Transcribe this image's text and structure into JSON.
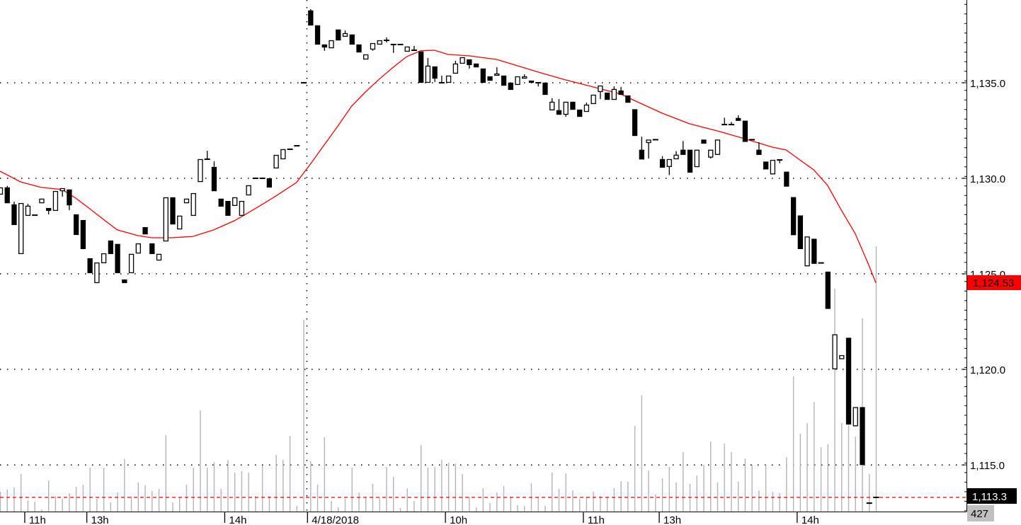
{
  "chart_data": {
    "type": "candlestick",
    "title": "",
    "ylim": [
      1112.56,
      1139.33
    ],
    "grid": true,
    "colors": {
      "up_body": "#ffffff",
      "down_body": "#000000",
      "outline": "#000000",
      "ma_line": "#ff0000",
      "volume": "#b4b4b4",
      "last_price_line": "#ff0000",
      "ma_badge": "#ff0000",
      "last_badge": "#000000",
      "volume_badge": "#c0c0c0"
    },
    "y_ticks": [
      {
        "value": 1135,
        "label": "1,135.0"
      },
      {
        "value": 1130,
        "label": "1,130.0"
      },
      {
        "value": 1125,
        "label": "1,125.0"
      },
      {
        "value": 1120,
        "label": "1,120.0"
      },
      {
        "value": 1115,
        "label": "1,115.0"
      }
    ],
    "x_ticks": [
      {
        "index": 4,
        "label": "11h"
      },
      {
        "index": 13,
        "label": "13h"
      },
      {
        "index": 33,
        "label": "14h"
      },
      {
        "index": 45,
        "label": "4/18/2018"
      },
      {
        "index": 65,
        "label": "10h"
      },
      {
        "index": 85,
        "label": "11h"
      },
      {
        "index": 96,
        "label": "13h"
      },
      {
        "index": 116,
        "label": "14h"
      }
    ],
    "session_break_index": 44.5,
    "ohlc": [
      [
        1129.15,
        1129.52,
        1129.15,
        1129.52
      ],
      [
        1129.52,
        1129.6,
        1128.7,
        1128.7
      ],
      [
        1128.63,
        1128.78,
        1127.56,
        1127.56
      ],
      [
        1126.04,
        1128.7,
        1126.04,
        1128.7
      ],
      [
        1128.04,
        1128.67,
        1128.04,
        1128.56
      ],
      [
        1128.07,
        1128.07,
        1128.07,
        1128.07
      ],
      [
        1128.7,
        1128.93,
        1128.7,
        1128.93
      ],
      [
        1128.44,
        1128.44,
        1128.11,
        1128.3
      ],
      [
        1128.3,
        1129.33,
        1128.3,
        1129.33
      ],
      [
        1129.33,
        1129.48,
        1129.04,
        1129.48
      ],
      [
        1129.41,
        1129.41,
        1128.33,
        1128.59
      ],
      [
        1128.11,
        1128.11,
        1127.04,
        1127.04
      ],
      [
        1127.81,
        1127.81,
        1126.3,
        1126.3
      ],
      [
        1125.81,
        1125.81,
        1125.04,
        1125.04
      ],
      [
        1124.52,
        1125.59,
        1124.52,
        1125.59
      ],
      [
        1125.56,
        1126.07,
        1125.56,
        1126.07
      ],
      [
        1126.74,
        1126.74,
        1126.04,
        1126.04
      ],
      [
        1126.56,
        1126.56,
        1125.04,
        1125.04
      ],
      [
        1124.7,
        1124.7,
        1124.52,
        1124.52
      ],
      [
        1125.04,
        1126.04,
        1125.04,
        1126.04
      ],
      [
        1126.07,
        1126.59,
        1126.07,
        1126.59
      ],
      [
        1127.44,
        1127.44,
        1127.07,
        1127.07
      ],
      [
        1126.59,
        1126.59,
        1126.04,
        1126.04
      ],
      [
        1125.7,
        1126.04,
        1125.7,
        1126.04
      ],
      [
        1126.7,
        1129.0,
        1126.7,
        1129.0
      ],
      [
        1129.0,
        1129.0,
        1127.59,
        1127.59
      ],
      [
        1127.33,
        1128.04,
        1127.33,
        1128.04
      ],
      [
        1128.7,
        1128.93,
        1128.7,
        1128.93
      ],
      [
        1128.04,
        1129.22,
        1128.04,
        1129.22
      ],
      [
        1129.81,
        1131.0,
        1129.81,
        1131.0
      ],
      [
        1131.0,
        1131.44,
        1131.0,
        1131.0
      ],
      [
        1130.59,
        1130.89,
        1129.33,
        1129.33
      ],
      [
        1128.93,
        1128.93,
        1128.52,
        1128.52
      ],
      [
        1128.81,
        1128.81,
        1128.04,
        1128.04
      ],
      [
        1128.56,
        1129.0,
        1128.56,
        1129.0
      ],
      [
        1128.04,
        1128.81,
        1128.04,
        1128.81
      ],
      [
        1129.11,
        1129.63,
        1129.11,
        1129.63
      ],
      [
        1130,
        1130,
        1130,
        1130
      ],
      [
        1130,
        1130,
        1130,
        1130
      ],
      [
        1130,
        1130,
        1129.52,
        1129.52
      ],
      [
        1130.52,
        1131.22,
        1130.52,
        1131.22
      ],
      [
        1131.0,
        1131.52,
        1131.0,
        1131.52
      ],
      [
        1131.52,
        1131.52,
        1131.52,
        1131.52
      ],
      [
        1131.7,
        1131.7,
        1131.7,
        1131.7
      ],
      [
        1135,
        1135,
        1135,
        1135
      ],
      [
        1138.78,
        1138.85,
        1138.0,
        1138.0
      ],
      [
        1138.0,
        1138.0,
        1137.0,
        1137.0
      ],
      [
        1137.0,
        1137.0,
        1136.67,
        1136.85
      ],
      [
        1136.81,
        1137.22,
        1136.81,
        1137.22
      ],
      [
        1137.78,
        1137.78,
        1137.22,
        1137.22
      ],
      [
        1137.41,
        1137.74,
        1137.41,
        1137.59
      ],
      [
        1137.52,
        1137.52,
        1137.0,
        1137.0
      ],
      [
        1137.0,
        1137.0,
        1136.59,
        1136.59
      ],
      [
        1136.22,
        1136.48,
        1136.22,
        1136.48
      ],
      [
        1136.74,
        1137.07,
        1136.67,
        1137.07
      ],
      [
        1137.0,
        1137.22,
        1137.0,
        1137.22
      ],
      [
        1137.22,
        1137.37,
        1137.11,
        1137.22
      ],
      [
        1137.0,
        1137.0,
        1136.56,
        1137.0
      ],
      [
        1137,
        1137,
        1137,
        1137
      ],
      [
        1136.63,
        1136.89,
        1136.63,
        1136.89
      ],
      [
        1136.7,
        1136.93,
        1136.7,
        1136.7
      ],
      [
        1136.63,
        1136.63,
        1135.0,
        1135.0
      ],
      [
        1135.0,
        1136.3,
        1135.0,
        1135.89
      ],
      [
        1135.85,
        1135.85,
        1135.04,
        1135.22
      ],
      [
        1135.0,
        1135.37,
        1135.0,
        1135.0
      ],
      [
        1135.0,
        1135.37,
        1135.0,
        1135.37
      ],
      [
        1135.48,
        1136.15,
        1135.48,
        1136.0
      ],
      [
        1136.0,
        1136.33,
        1136.0,
        1136.33
      ],
      [
        1136.22,
        1136.22,
        1135.74,
        1135.93
      ],
      [
        1136.0,
        1136.0,
        1135.81,
        1135.81
      ],
      [
        1135.74,
        1135.74,
        1135.0,
        1135.0
      ],
      [
        1135.33,
        1135.33,
        1135.11,
        1135.11
      ],
      [
        1135.37,
        1135.81,
        1135.37,
        1135.48
      ],
      [
        1135.37,
        1135.37,
        1134.85,
        1134.85
      ],
      [
        1135.0,
        1135.0,
        1134.63,
        1134.63
      ],
      [
        1134.89,
        1135.33,
        1134.89,
        1135.33
      ],
      [
        1135.22,
        1135.44,
        1135.22,
        1135.33
      ],
      [
        1135.11,
        1135.11,
        1135.0,
        1135.0
      ],
      [
        1135.0,
        1135.0,
        1134.81,
        1135.0
      ],
      [
        1135.0,
        1135.0,
        1134.37,
        1134.37
      ],
      [
        1133.56,
        1134.19,
        1133.56,
        1134.0
      ],
      [
        1133.56,
        1134.15,
        1133.33,
        1133.33
      ],
      [
        1133.33,
        1134.0,
        1133.22,
        1134.0
      ],
      [
        1134.0,
        1134.0,
        1133.59,
        1133.59
      ],
      [
        1133.59,
        1133.59,
        1133.22,
        1133.22
      ],
      [
        1133.48,
        1133.96,
        1133.48,
        1133.85
      ],
      [
        1133.89,
        1134.37,
        1133.89,
        1134.37
      ],
      [
        1134.52,
        1134.85,
        1134.15,
        1134.85
      ],
      [
        1134.48,
        1134.48,
        1134.11,
        1134.11
      ],
      [
        1134.11,
        1134.81,
        1134.11,
        1134.67
      ],
      [
        1134.59,
        1134.78,
        1134.37,
        1134.37
      ],
      [
        1134.33,
        1134.33,
        1133.96,
        1133.96
      ],
      [
        1133.61,
        1133.61,
        1132.22,
        1132.22
      ],
      [
        1131.49,
        1132.18,
        1130.99,
        1130.99
      ],
      [
        1131.85,
        1132.02,
        1131.03,
        1132.02
      ],
      [
        1132.02,
        1132.02,
        1132.02,
        1132.02
      ],
      [
        1131.0,
        1131.16,
        1130.56,
        1130.56
      ],
      [
        1130.6,
        1131.0,
        1130.17,
        1131.0
      ],
      [
        1131.0,
        1131.42,
        1131.0,
        1131.23
      ],
      [
        1131.49,
        1131.95,
        1131.23,
        1131.23
      ],
      [
        1131.49,
        1131.49,
        1130.3,
        1130.3
      ],
      [
        1130.59,
        1131.49,
        1130.59,
        1131.49
      ],
      [
        1132.02,
        1132.02,
        1131.82,
        1131.82
      ],
      [
        1131.09,
        1131.49,
        1131.03,
        1131.49
      ],
      [
        1131.23,
        1132.02,
        1131.23,
        1132.02
      ],
      [
        1132.81,
        1133.17,
        1132.81,
        1132.81
      ],
      [
        1132.81,
        1132.95,
        1132.81,
        1132.81
      ],
      [
        1133.15,
        1133.3,
        1133.01,
        1133.01
      ],
      [
        1133.01,
        1133.01,
        1131.91,
        1131.91
      ],
      [
        1132.02,
        1132.02,
        1132.02,
        1132.02
      ],
      [
        1131.49,
        1131.89,
        1131.23,
        1131.23
      ],
      [
        1130.87,
        1130.87,
        1130.47,
        1130.47
      ],
      [
        1130.21,
        1130.96,
        1130.21,
        1130.96
      ],
      [
        1130.96,
        1130.96,
        1130.79,
        1130.96
      ],
      [
        1130.34,
        1130.34,
        1129.57,
        1129.57
      ],
      [
        1129.01,
        1129.01,
        1127.03,
        1127.03
      ],
      [
        1128.05,
        1128.05,
        1126.3,
        1126.3
      ],
      [
        1125.4,
        1126.95,
        1125.4,
        1126.95
      ],
      [
        1126.83,
        1126.83,
        1125.53,
        1125.53
      ],
      [
        1125.57,
        1125.57,
        1125.57,
        1125.57
      ],
      [
        1125.11,
        1125.11,
        1123.17,
        1123.17
      ],
      [
        1120.01,
        1121.83,
        1120.01,
        1121.83
      ],
      [
        1120.54,
        1120.74,
        1120.54,
        1120.74
      ],
      [
        1121.65,
        1121.65,
        1117.12,
        1117.12
      ],
      [
        1117.03,
        1118.02,
        1117.03,
        1118.02
      ],
      [
        1118.02,
        1118.02,
        1115.0,
        1115.0
      ],
      [
        1113.0,
        1113.0,
        1113.0,
        1113.0
      ],
      [
        1113.3,
        1113.3,
        1113.3,
        1113.3
      ]
    ],
    "volume_relative": [
      28,
      31,
      34,
      53,
      16,
      14,
      3,
      44,
      22,
      18,
      26,
      35,
      38,
      62,
      18,
      62,
      13,
      27,
      74,
      22,
      41,
      37,
      29,
      32,
      108,
      13,
      20,
      38,
      62,
      143,
      62,
      70,
      32,
      73,
      55,
      57,
      55,
      22,
      65,
      22,
      80,
      73,
      107,
      8,
      271,
      71,
      38,
      105,
      15,
      6,
      18,
      62,
      27,
      19,
      39,
      19,
      63,
      49,
      5,
      33,
      15,
      94,
      62,
      63,
      73,
      69,
      68,
      53,
      21,
      6,
      33,
      12,
      27,
      36,
      21,
      9,
      8,
      40,
      21,
      8,
      55,
      32,
      54,
      30,
      18,
      21,
      28,
      22,
      21,
      33,
      43,
      42,
      121,
      164,
      58,
      24,
      47,
      63,
      41,
      84,
      39,
      51,
      66,
      99,
      41,
      96,
      84,
      42,
      75,
      66,
      30,
      66,
      28,
      26,
      77,
      191,
      110,
      125,
      155,
      91,
      95,
      315,
      125,
      122,
      106,
      273,
      53,
      375
    ],
    "moving_average": [
      [
        0,
        1130.37
      ],
      [
        3,
        1129.81
      ],
      [
        6,
        1129.52
      ],
      [
        9,
        1129.41
      ],
      [
        11,
        1128.96
      ],
      [
        13,
        1128.41
      ],
      [
        15,
        1127.85
      ],
      [
        17,
        1127.3
      ],
      [
        20,
        1127.0
      ],
      [
        22,
        1126.89
      ],
      [
        25,
        1126.89
      ],
      [
        28,
        1126.96
      ],
      [
        31,
        1127.3
      ],
      [
        34,
        1127.78
      ],
      [
        37,
        1128.41
      ],
      [
        40,
        1129.07
      ],
      [
        43,
        1129.78
      ],
      [
        45,
        1130.74
      ],
      [
        47,
        1131.74
      ],
      [
        49,
        1132.74
      ],
      [
        51,
        1133.78
      ],
      [
        53,
        1134.52
      ],
      [
        55,
        1135.19
      ],
      [
        57,
        1135.81
      ],
      [
        59,
        1136.37
      ],
      [
        61,
        1136.67
      ],
      [
        63,
        1136.7
      ],
      [
        65,
        1136.48
      ],
      [
        68,
        1136.41
      ],
      [
        72,
        1136.22
      ],
      [
        74,
        1136.0
      ],
      [
        78,
        1135.56
      ],
      [
        82,
        1135.15
      ],
      [
        86,
        1134.78
      ],
      [
        90,
        1134.41
      ],
      [
        92,
        1134.07
      ],
      [
        96,
        1133.41
      ],
      [
        100,
        1132.85
      ],
      [
        104,
        1132.48
      ],
      [
        108,
        1132.07
      ],
      [
        112,
        1131.63
      ],
      [
        114,
        1131.48
      ],
      [
        116,
        1130.96
      ],
      [
        118,
        1130.44
      ],
      [
        120,
        1129.63
      ],
      [
        122,
        1128.33
      ],
      [
        124,
        1127.11
      ],
      [
        126,
        1125.44
      ],
      [
        127,
        1124.53
      ]
    ],
    "last_price": 1113.3,
    "badges": {
      "ma_value": "1,124.53",
      "last_price": "1,113.3",
      "volume": "427"
    }
  }
}
